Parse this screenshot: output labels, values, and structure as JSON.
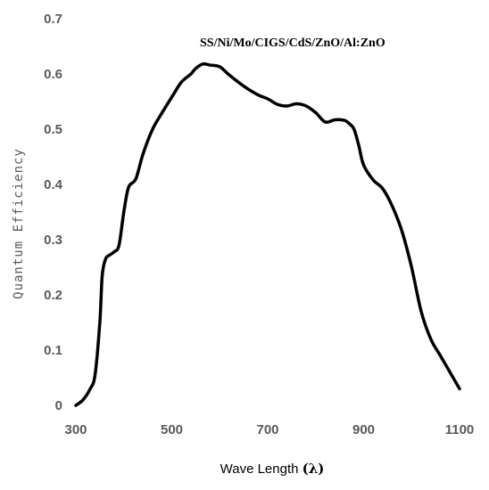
{
  "chart_data": {
    "type": "line",
    "annotation": "SS/Ni/Mo/CIGS/CdS/ZnO/Al:ZnO",
    "xlabel": "Wave Length",
    "xlabel_symbol": "(λ)",
    "ylabel": "Quantum Efficiency",
    "xlim": [
      300,
      1100
    ],
    "ylim": [
      0,
      0.7
    ],
    "x_ticks": [
      "300",
      "500",
      "700",
      "900",
      "1100"
    ],
    "y_ticks": [
      "0",
      "0.1",
      "0.2",
      "0.3",
      "0.4",
      "0.5",
      "0.6",
      "0.7"
    ],
    "grid": false,
    "line_color": "#000000",
    "series": [
      {
        "x": [
          300,
          315,
          330,
          340,
          350,
          355,
          362,
          370,
          380,
          390,
          400,
          410,
          425,
          440,
          460,
          480,
          500,
          520,
          540,
          550,
          565,
          580,
          600,
          620,
          650,
          680,
          700,
          720,
          740,
          760,
          780,
          800,
          820,
          840,
          860,
          870,
          880,
          890,
          900,
          920,
          940,
          960,
          980,
          1000,
          1020,
          1040,
          1060,
          1080,
          1100
        ],
        "y": [
          0.0,
          0.01,
          0.03,
          0.055,
          0.15,
          0.235,
          0.265,
          0.272,
          0.278,
          0.29,
          0.35,
          0.395,
          0.41,
          0.455,
          0.5,
          0.53,
          0.558,
          0.585,
          0.6,
          0.61,
          0.618,
          0.616,
          0.613,
          0.598,
          0.578,
          0.562,
          0.555,
          0.545,
          0.542,
          0.546,
          0.542,
          0.53,
          0.513,
          0.517,
          0.516,
          0.51,
          0.5,
          0.47,
          0.435,
          0.408,
          0.392,
          0.36,
          0.315,
          0.25,
          0.17,
          0.12,
          0.09,
          0.06,
          0.03
        ]
      }
    ]
  }
}
